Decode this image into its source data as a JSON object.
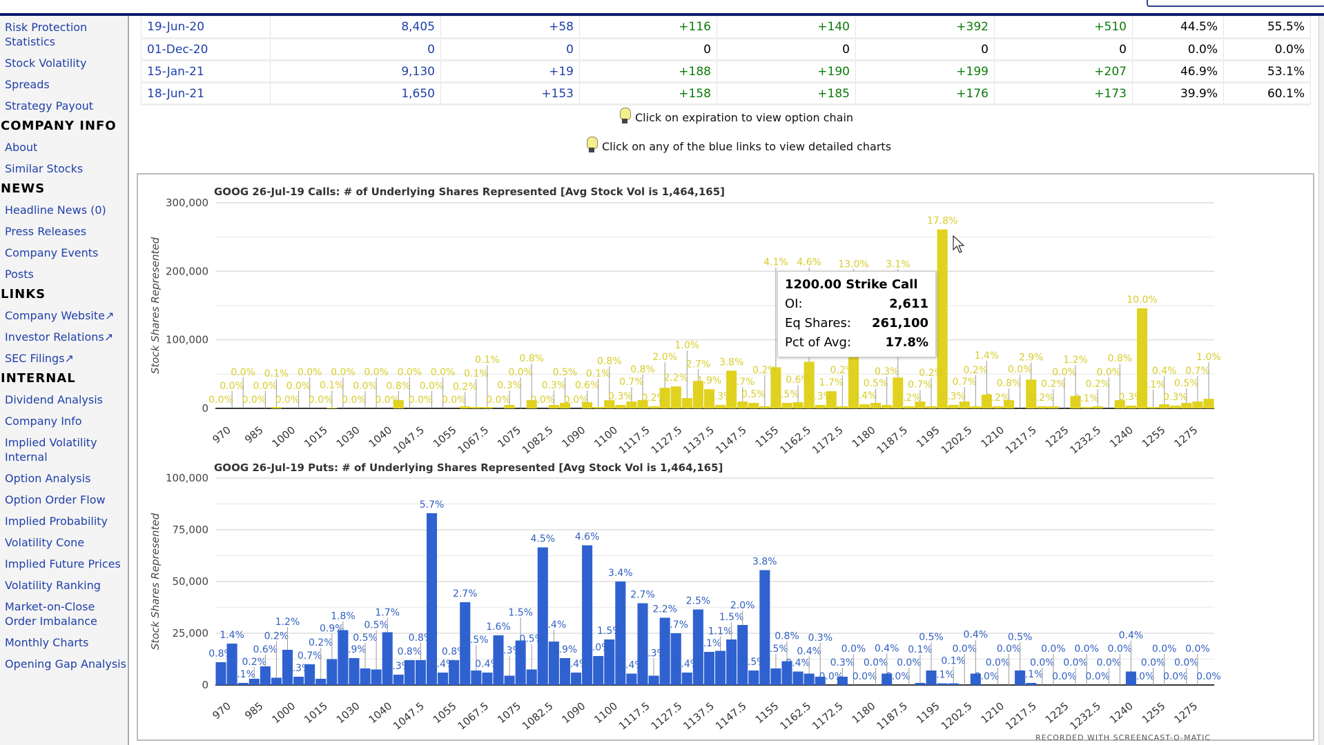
{
  "sidebar": {
    "items": [
      {
        "type": "link",
        "label": "Risk Protection Statistics"
      },
      {
        "type": "link",
        "label": "Stock Volatility"
      },
      {
        "type": "link",
        "label": "Spreads"
      },
      {
        "type": "link",
        "label": "Strategy Payout"
      },
      {
        "type": "head",
        "label": "COMPANY INFO"
      },
      {
        "type": "link",
        "label": "About"
      },
      {
        "type": "link",
        "label": "Similar Stocks"
      },
      {
        "type": "head",
        "label": "NEWS"
      },
      {
        "type": "link",
        "label": "Headline News (0)"
      },
      {
        "type": "link",
        "label": "Press Releases"
      },
      {
        "type": "link",
        "label": "Company Events"
      },
      {
        "type": "link",
        "label": "Posts"
      },
      {
        "type": "head",
        "label": "LINKS"
      },
      {
        "type": "link",
        "label": "Company Website↗"
      },
      {
        "type": "link",
        "label": "Investor Relations↗"
      },
      {
        "type": "link",
        "label": "SEC Filings↗"
      },
      {
        "type": "head",
        "label": "INTERNAL"
      },
      {
        "type": "link",
        "label": "Dividend Analysis"
      },
      {
        "type": "link",
        "label": "Company Info"
      },
      {
        "type": "link",
        "label": "Implied Volatility Internal"
      },
      {
        "type": "link",
        "label": "Option Analysis"
      },
      {
        "type": "link",
        "label": "Option Order Flow"
      },
      {
        "type": "link",
        "label": "Implied Probability"
      },
      {
        "type": "link",
        "label": "Volatility Cone"
      },
      {
        "type": "link",
        "label": "Implied Future Prices"
      },
      {
        "type": "link",
        "label": "Volatility Ranking"
      },
      {
        "type": "link",
        "label": "Market-on-Close Order Imbalance"
      },
      {
        "type": "link",
        "label": "Monthly Charts"
      },
      {
        "type": "link",
        "label": "Opening Gap Analysis"
      }
    ]
  },
  "table": {
    "rows": [
      [
        "19-Jun-20",
        "8,405",
        "+58",
        "+116",
        "+140",
        "+392",
        "+510",
        "44.5%",
        "55.5%"
      ],
      [
        "01-Dec-20",
        "0",
        "0",
        "0",
        "0",
        "0",
        "0",
        "0.0%",
        "0.0%"
      ],
      [
        "15-Jan-21",
        "9,130",
        "+19",
        "+188",
        "+190",
        "+199",
        "+207",
        "46.9%",
        "53.1%"
      ],
      [
        "18-Jun-21",
        "1,650",
        "+153",
        "+158",
        "+185",
        "+176",
        "+173",
        "39.9%",
        "60.1%"
      ]
    ]
  },
  "hints": {
    "expiration": "Click on expiration to view option chain",
    "blue_links": "Click on any of the blue links to view detailed charts"
  },
  "tooltip": {
    "title": "1200.00 Strike Call",
    "oi_label": "OI:",
    "oi": "2,611",
    "eq_label": "Eq Shares:",
    "eq": "261,100",
    "pct_label": "Pct of Avg:",
    "pct": "17.8%"
  },
  "watermark": "RECORDED WITH SCREENCAST-O-MATIC",
  "chart_data": [
    {
      "type": "bar",
      "title": "GOOG 26-Jul-19 Calls: # of Underlying Shares Represented [Avg Stock Vol is 1,464,165]",
      "ylabel": "Stock Shares Represented",
      "ylim": [
        0,
        300000
      ],
      "yticks": [
        "0",
        "100,000",
        "200,000",
        "300,000"
      ],
      "ytick_values": [
        0,
        100000,
        200000,
        300000
      ],
      "avg_stock_vol": 1464165,
      "color": "#e0d21f",
      "label_color": "#d8cc2a",
      "x_tick_labels": [
        "970",
        "985",
        "1000",
        "1015",
        "1030",
        "1040",
        "1047.5",
        "1055",
        "1067.5",
        "1075",
        "1082.5",
        "1090",
        "1100",
        "1117.5",
        "1127.5",
        "1137.5",
        "1147.5",
        "1155",
        "1162.5",
        "1172.5",
        "1180",
        "1187.5",
        "1195",
        "1202.5",
        "1210",
        "1217.5",
        "1225",
        "1232.5",
        "1240",
        "1255",
        "1275"
      ],
      "values": [
        0,
        0,
        0,
        0,
        0,
        2000,
        0,
        0,
        0,
        0,
        1000,
        0,
        0,
        0,
        0,
        0,
        12000,
        0,
        0,
        0,
        0,
        0,
        3000,
        2000,
        2000,
        0,
        5000,
        0,
        12000,
        0,
        5000,
        8000,
        0,
        9000,
        2000,
        12000,
        5000,
        10000,
        12000,
        3000,
        30000,
        32000,
        15000,
        40000,
        28000,
        5000,
        55000,
        10000,
        8000,
        3000,
        60000,
        8000,
        9000,
        68000,
        5000,
        25000,
        3000,
        190000,
        6000,
        8000,
        5000,
        45000,
        3000,
        10000,
        3000,
        261100,
        5000,
        10000,
        3000,
        20000,
        3000,
        12000,
        0,
        42000,
        3000,
        3000,
        0,
        18000,
        2000,
        3000,
        0,
        12000,
        4000,
        146000,
        2000,
        6000,
        4000,
        8000,
        10000,
        14000
      ]
    },
    {
      "type": "bar",
      "title": "GOOG 26-Jul-19 Puts: # of Underlying Shares Represented [Avg Stock Vol is 1,464,165]",
      "ylabel": "Stock Shares Represented",
      "ylim": [
        0,
        100000
      ],
      "yticks": [
        "0",
        "25,000",
        "50,000",
        "75,000",
        "100,000"
      ],
      "ytick_values": [
        0,
        25000,
        50000,
        75000,
        100000
      ],
      "avg_stock_vol": 1464165,
      "color": "#2f62d0",
      "label_color": "#2f5fc0",
      "x_tick_labels": [
        "970",
        "985",
        "1000",
        "1015",
        "1030",
        "1040",
        "1047.5",
        "1055",
        "1067.5",
        "1075",
        "1082.5",
        "1090",
        "1100",
        "1117.5",
        "1127.5",
        "1137.5",
        "1147.5",
        "1155",
        "1162.5",
        "1172.5",
        "1180",
        "1187.5",
        "1195",
        "1202.5",
        "1210",
        "1217.5",
        "1225",
        "1232.5",
        "1240",
        "1255",
        "1275"
      ],
      "values": [
        11000,
        20000,
        1000,
        3000,
        9000,
        3500,
        17000,
        4000,
        10000,
        3000,
        12500,
        26500,
        13000,
        8000,
        7500,
        25500,
        5000,
        12000,
        12000,
        83000,
        6000,
        12000,
        40000,
        7000,
        6000,
        24000,
        4500,
        21500,
        7500,
        66500,
        21000,
        13000,
        6000,
        67500,
        14000,
        22000,
        50000,
        5500,
        39500,
        4500,
        32500,
        25000,
        6000,
        36500,
        16000,
        16500,
        22000,
        29000,
        7000,
        55500,
        8000,
        11500,
        6500,
        5500,
        4000,
        0,
        4000,
        0,
        0,
        0,
        5500,
        0,
        0,
        1000,
        7000,
        800,
        800,
        0,
        5500,
        0,
        0,
        0,
        7000,
        1000,
        0,
        0,
        0,
        0,
        0,
        0,
        0,
        0,
        6500,
        0,
        0,
        0,
        0,
        0,
        0,
        0
      ]
    }
  ]
}
